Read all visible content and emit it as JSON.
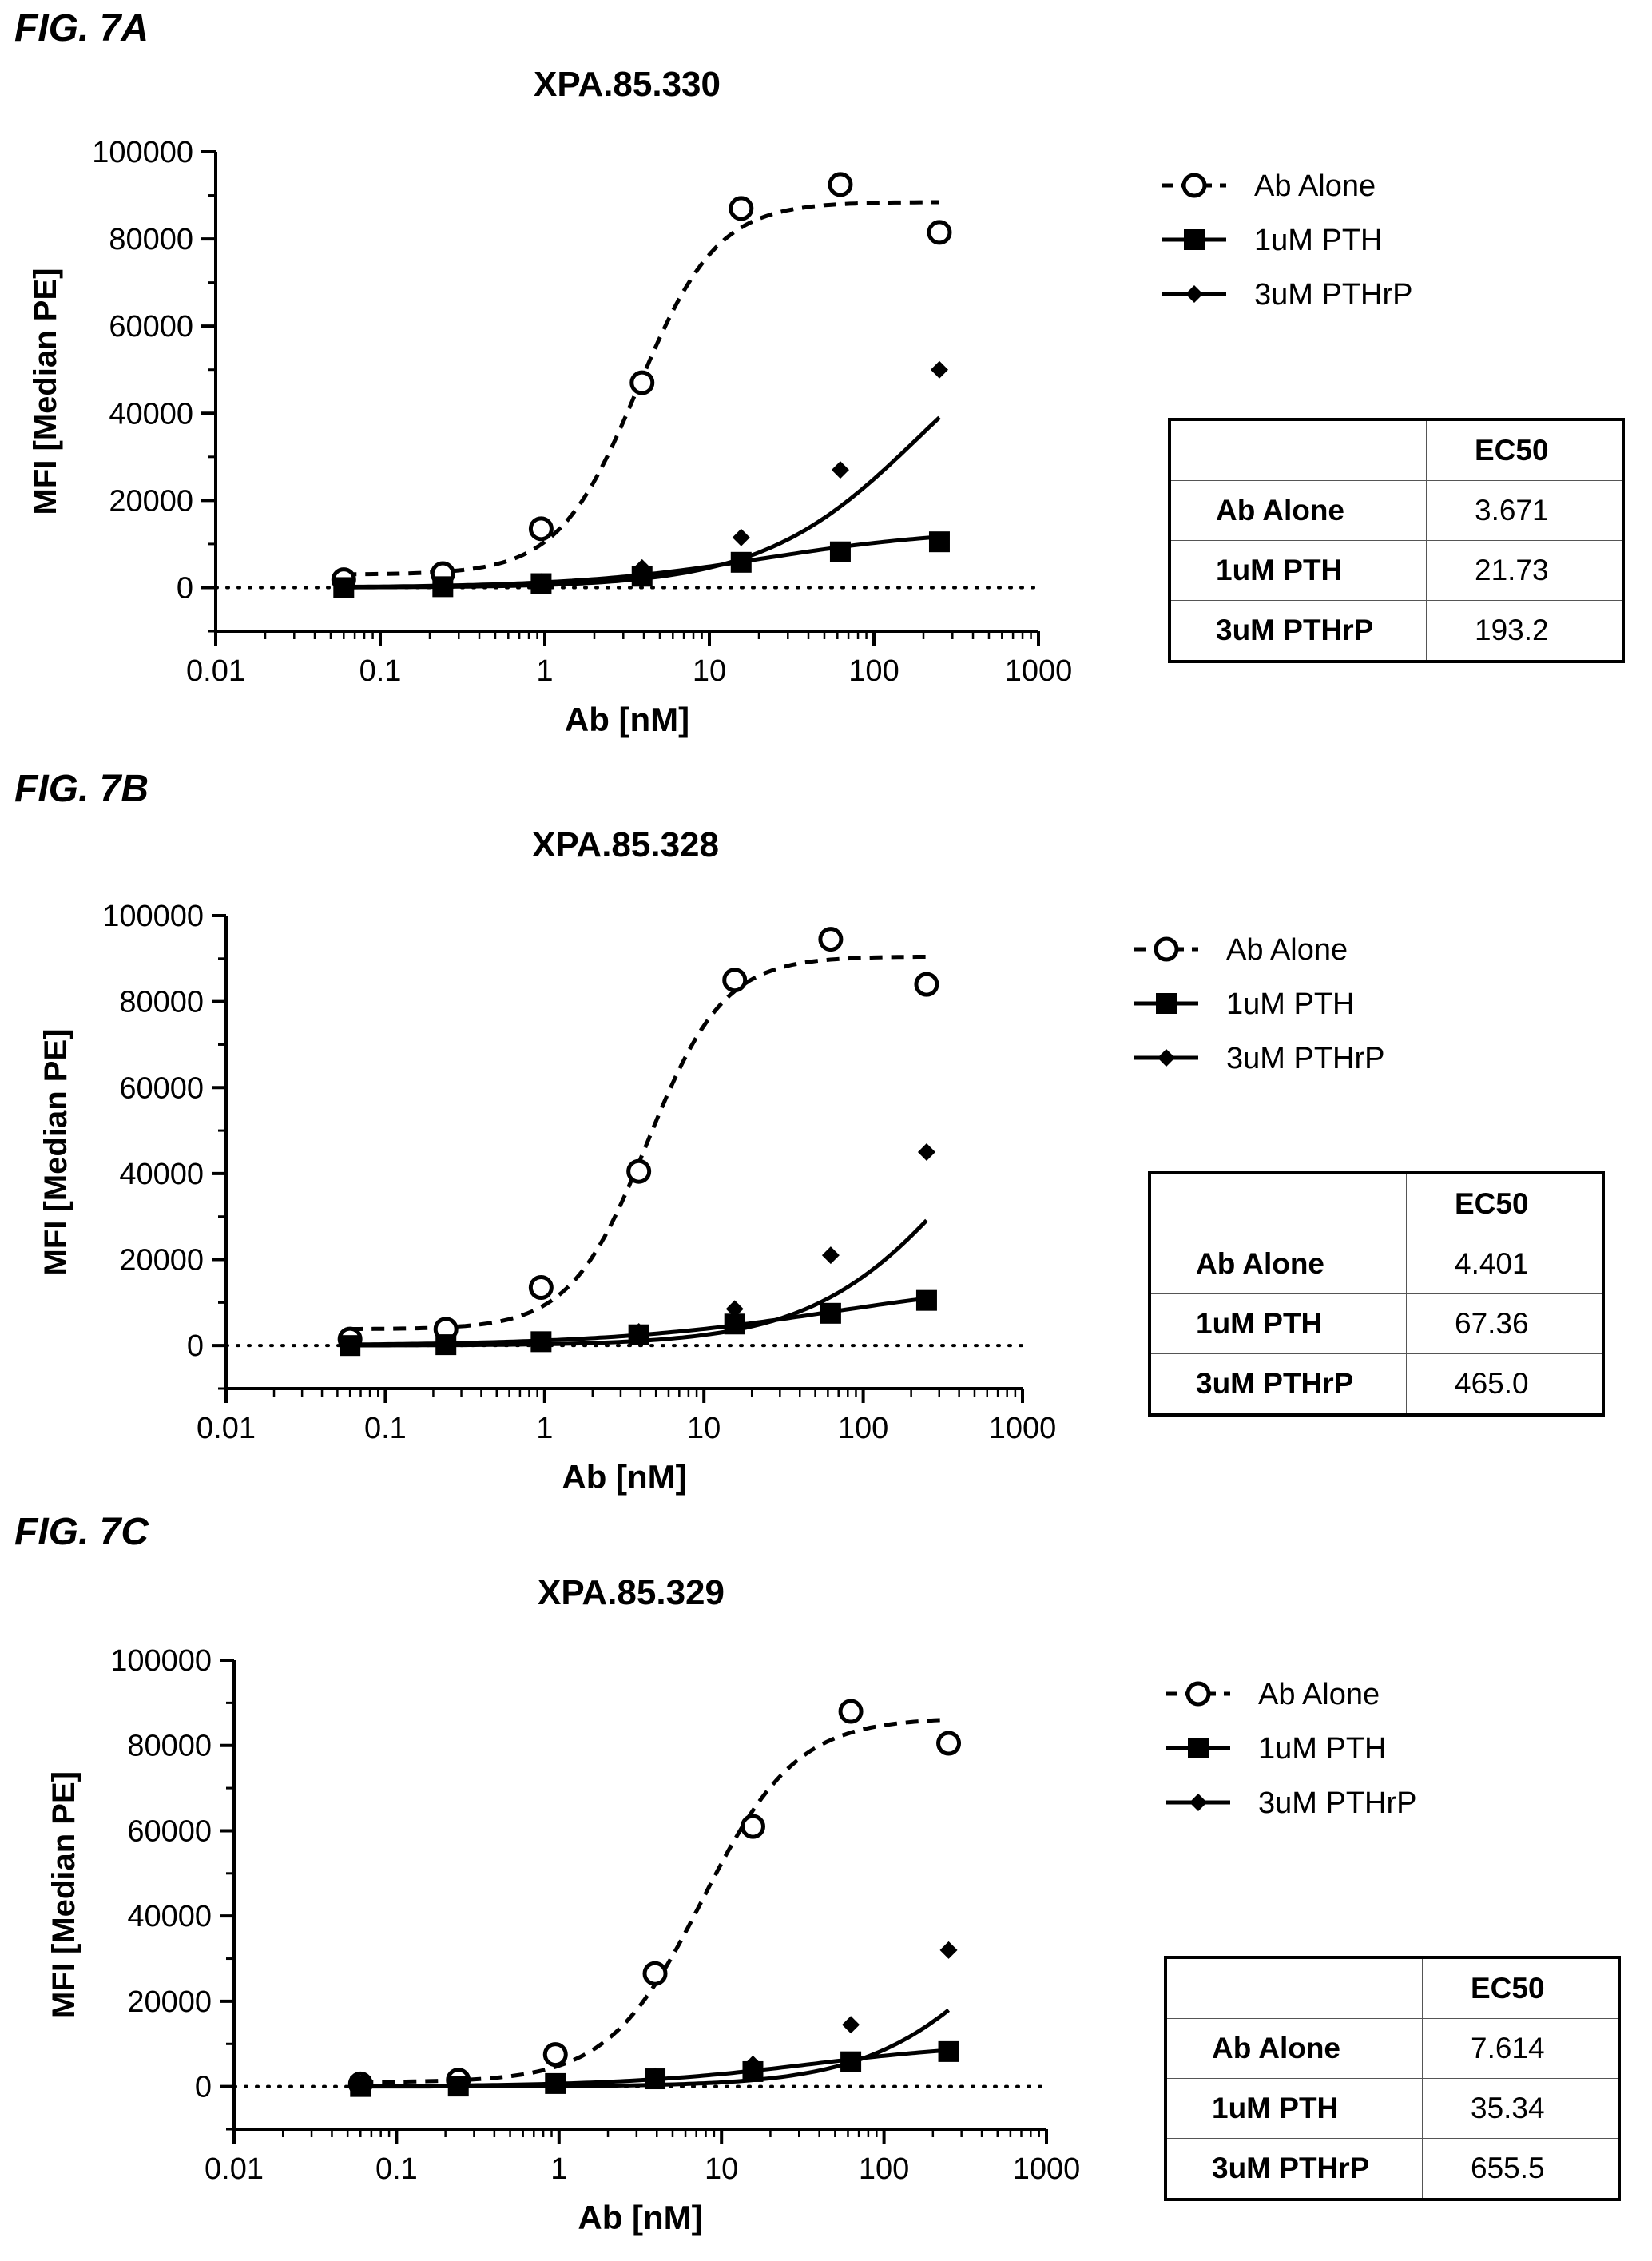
{
  "figures": [
    {
      "label": "FIG. 7A",
      "chart_data": {
        "type": "scatter",
        "title": "XPA.85.330",
        "xlabel": "Ab [nM]",
        "ylabel": "MFI [Median PE]",
        "xscale": "log",
        "xlim": [
          0.01,
          1000
        ],
        "ylim": [
          -10000,
          100000
        ],
        "xticks": [
          "0.01",
          "0.1",
          "1",
          "10",
          "100",
          "1000"
        ],
        "yticks": [
          "0",
          "20000",
          "40000",
          "60000",
          "80000",
          "100000"
        ],
        "x": [
          0.06,
          0.24,
          0.95,
          3.9,
          15.6,
          62.5,
          250
        ],
        "series": [
          {
            "name": "Ab Alone",
            "marker": "open-circle",
            "line": "dashed",
            "values": [
              1800,
              3200,
              13500,
              47000,
              87000,
              92500,
              81500
            ],
            "fit": {
              "bottom": 3000,
              "top": 88500,
              "ec50": 3.671,
              "hill": 1.8
            }
          },
          {
            "name": "1uM PTH",
            "marker": "square",
            "line": "solid",
            "values": [
              0,
              200,
              900,
              2600,
              5800,
              8200,
              10500
            ],
            "fit": {
              "bottom": 0,
              "top": 13500,
              "ec50": 21.73,
              "hill": 0.75
            }
          },
          {
            "name": "3uM PTHrP",
            "marker": "diamond",
            "line": "solid",
            "values": [
              200,
              400,
              1300,
              4500,
              11500,
              27000,
              50000
            ],
            "fit": {
              "bottom": 0,
              "top": 70000,
              "ec50": 193.2,
              "hill": 0.9
            }
          }
        ],
        "baseline": {
          "y": 0,
          "style": "dotted"
        },
        "legend_position": "right"
      },
      "table": {
        "header": [
          "",
          "EC50"
        ],
        "rows": [
          [
            "Ab Alone",
            "3.671"
          ],
          [
            "1uM PTH",
            "21.73"
          ],
          [
            "3uM PTHrP",
            "193.2"
          ]
        ]
      }
    },
    {
      "label": "FIG. 7B",
      "chart_data": {
        "type": "scatter",
        "title": "XPA.85.328",
        "xlabel": "Ab [nM]",
        "ylabel": "MFI [Median PE]",
        "xscale": "log",
        "xlim": [
          0.01,
          1000
        ],
        "ylim": [
          -10000,
          100000
        ],
        "xticks": [
          "0.01",
          "0.1",
          "1",
          "10",
          "100",
          "1000"
        ],
        "yticks": [
          "0",
          "20000",
          "40000",
          "60000",
          "80000",
          "100000"
        ],
        "x": [
          0.06,
          0.24,
          0.95,
          3.9,
          15.6,
          62.5,
          250
        ],
        "series": [
          {
            "name": "Ab Alone",
            "marker": "open-circle",
            "line": "dashed",
            "values": [
              1500,
              3800,
              13500,
              40500,
              85000,
              94500,
              84000
            ],
            "fit": {
              "bottom": 3800,
              "top": 90500,
              "ec50": 4.401,
              "hill": 1.8
            }
          },
          {
            "name": "1uM PTH",
            "marker": "square",
            "line": "solid",
            "values": [
              0,
              200,
              900,
              2500,
              5000,
              7500,
              10500
            ],
            "fit": {
              "bottom": 0,
              "top": 16000,
              "ec50": 67.36,
              "hill": 0.6
            }
          },
          {
            "name": "3uM PTHrP",
            "marker": "diamond",
            "line": "solid",
            "values": [
              200,
              400,
              1000,
              3200,
              8500,
              21000,
              45000
            ],
            "fit": {
              "bottom": 0,
              "top": 80000,
              "ec50": 465.0,
              "hill": 0.9
            }
          }
        ],
        "baseline": {
          "y": 0,
          "style": "dotted"
        },
        "legend_position": "right"
      },
      "table": {
        "header": [
          "",
          "EC50"
        ],
        "rows": [
          [
            "Ab Alone",
            "4.401"
          ],
          [
            "1uM PTH",
            "67.36"
          ],
          [
            "3uM PTHrP",
            "465.0"
          ]
        ]
      }
    },
    {
      "label": "FIG. 7C",
      "chart_data": {
        "type": "scatter",
        "title": "XPA.85.329",
        "xlabel": "Ab [nM]",
        "ylabel": "MFI [Median PE]",
        "xscale": "log",
        "xlim": [
          0.01,
          1000
        ],
        "ylim": [
          -10000,
          100000
        ],
        "xticks": [
          "0.01",
          "0.1",
          "1",
          "10",
          "100",
          "1000"
        ],
        "yticks": [
          "0",
          "20000",
          "40000",
          "60000",
          "80000",
          "100000"
        ],
        "x": [
          0.06,
          0.24,
          0.95,
          3.9,
          15.6,
          62.5,
          250
        ],
        "series": [
          {
            "name": "Ab Alone",
            "marker": "open-circle",
            "line": "dashed",
            "values": [
              600,
              1500,
              7500,
              26500,
              61000,
              88000,
              80500
            ],
            "fit": {
              "bottom": 1000,
              "top": 86500,
              "ec50": 7.614,
              "hill": 1.5
            }
          },
          {
            "name": "1uM PTH",
            "marker": "square",
            "line": "solid",
            "values": [
              0,
              100,
              700,
              1800,
              3500,
              5800,
              8200
            ],
            "fit": {
              "bottom": 0,
              "top": 10500,
              "ec50": 35.34,
              "hill": 0.75
            }
          },
          {
            "name": "3uM PTHrP",
            "marker": "diamond",
            "line": "solid",
            "values": [
              100,
              300,
              800,
              2400,
              5200,
              14500,
              32000
            ],
            "fit": {
              "bottom": 0,
              "top": 65000,
              "ec50": 655.5,
              "hill": 1.0
            }
          }
        ],
        "baseline": {
          "y": 0,
          "style": "dotted"
        },
        "legend_position": "right"
      },
      "table": {
        "header": [
          "",
          "EC50"
        ],
        "rows": [
          [
            "Ab Alone",
            "7.614"
          ],
          [
            "1uM PTH",
            "35.34"
          ],
          [
            "3uM PTHrP",
            "655.5"
          ]
        ]
      }
    }
  ]
}
